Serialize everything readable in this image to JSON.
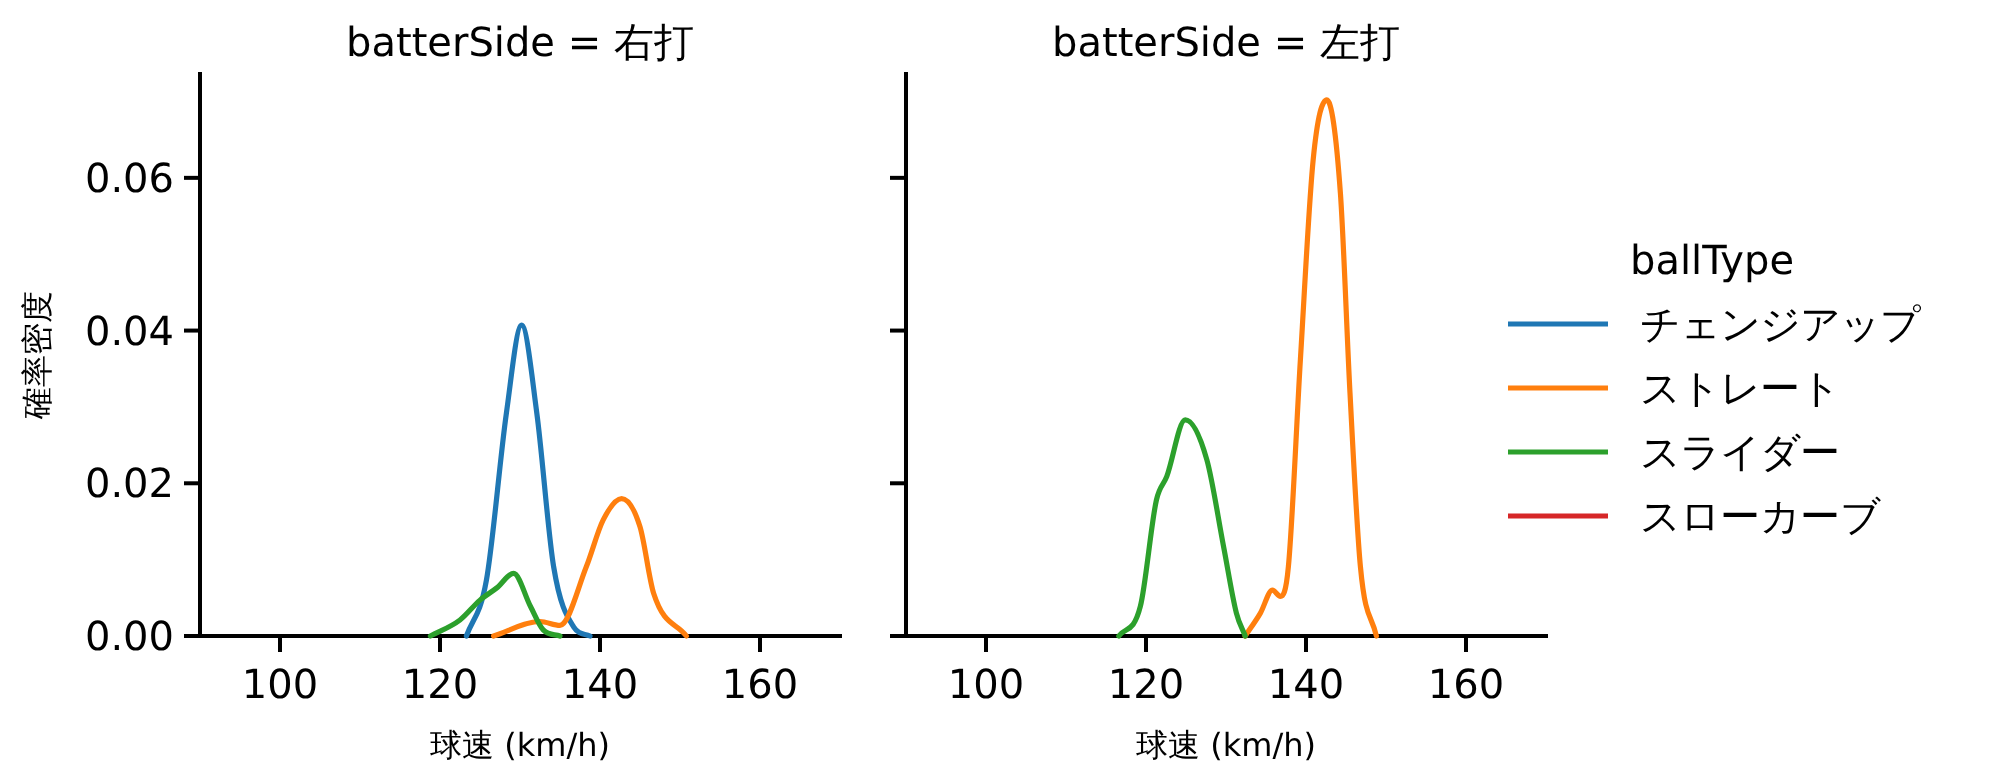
{
  "chart_data": [
    {
      "type": "line",
      "title": "batterSide = 右打",
      "xlabel": "球速 (km/h)",
      "ylabel": "確率密度",
      "xlim": [
        90,
        170
      ],
      "ylim": [
        0,
        0.0736
      ],
      "xticks": [
        100,
        120,
        140,
        160
      ],
      "yticks": [
        {
          "value": 0,
          "label": "0.00"
        },
        {
          "value": 0.02,
          "label": "0.02"
        },
        {
          "value": 0.04,
          "label": "0.04"
        },
        {
          "value": 0.06,
          "label": "0.06"
        }
      ],
      "legend": false,
      "series": [
        {
          "color": "#1f77b4",
          "x": [
            123.3,
            125.8,
            128.3,
            130.2,
            132.1,
            134.2,
            136.7,
            138.75
          ],
          "values": [
            0,
            0.0073,
            0.0292,
            0.0407,
            0.0292,
            0.0091,
            0.0012,
            0
          ]
        },
        {
          "color": "#ff7f0e",
          "x": [
            126.7,
            132.5,
            135,
            138.3,
            140.4,
            142.7,
            145,
            146.7,
            150.8
          ],
          "values": [
            0,
            0.0019,
            0.0014,
            0.0091,
            0.0152,
            0.018,
            0.0143,
            0.0056,
            0
          ]
        },
        {
          "color": "#2ca02c",
          "x": [
            118.8,
            122.5,
            125,
            127.1,
            129.2,
            131.3,
            132.9,
            135
          ],
          "values": [
            0,
            0.0021,
            0.0047,
            0.0063,
            0.0082,
            0.0039,
            0.0008,
            0
          ]
        }
      ]
    },
    {
      "type": "line",
      "title": "batterSide = 左打",
      "xlabel": "球速 (km/h)",
      "xlim": [
        90,
        170
      ],
      "ylim": [
        0,
        0.0736
      ],
      "xticks": [
        100,
        120,
        140,
        160
      ],
      "yticks": [
        0,
        0.02,
        0.04,
        0.06
      ],
      "tick_labels": "x",
      "legend": "right",
      "legend_title": "ballType",
      "series": [
        {
          "name": "チェンジアップ",
          "color": "#1f77b4"
        },
        {
          "name": "ストレート",
          "color": "#ff7f0e",
          "x": [
            132.4,
            134.3,
            135.8,
            136.8,
            137.8,
            139.3,
            140.9,
            142.6,
            144.3,
            145.5,
            146.8,
            148.8
          ],
          "values": [
            0,
            0.003,
            0.006,
            0.0052,
            0.0091,
            0.0362,
            0.0624,
            0.0702,
            0.058,
            0.0318,
            0.0091,
            0
          ]
        },
        {
          "name": "スライダー",
          "color": "#2ca02c",
          "x": [
            116.6,
            119.3,
            121.3,
            122.6,
            124.9,
            127.6,
            129.7,
            131.3,
            132.4
          ],
          "values": [
            0,
            0.0039,
            0.0178,
            0.0209,
            0.0283,
            0.0231,
            0.0117,
            0.003,
            0
          ]
        },
        {
          "name": "スローカーブ",
          "color": "#d62728"
        }
      ]
    }
  ]
}
